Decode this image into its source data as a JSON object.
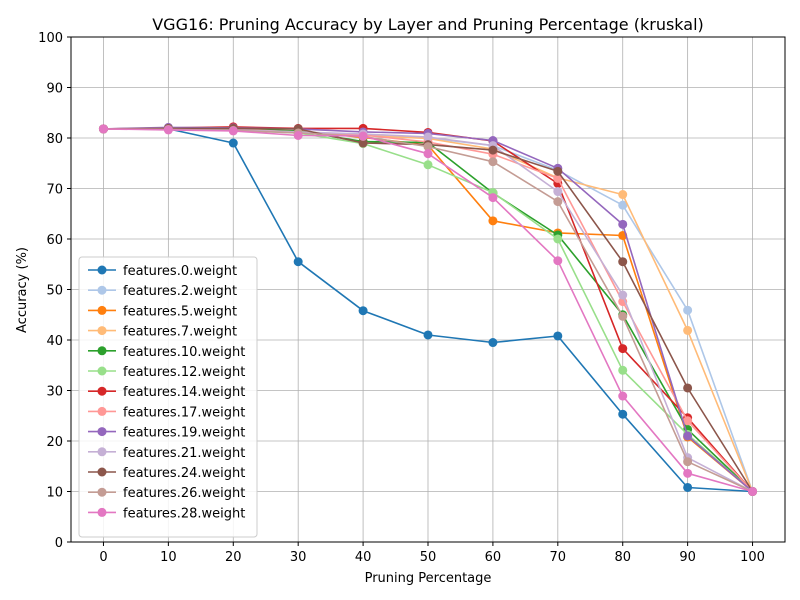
{
  "chart_data": {
    "type": "line",
    "title": "VGG16: Pruning Accuracy by Layer and Pruning Percentage (kruskal)",
    "xlabel": "Pruning Percentage",
    "ylabel": "Accuracy (%)",
    "x": [
      0,
      10,
      20,
      30,
      40,
      50,
      60,
      70,
      80,
      90,
      100
    ],
    "xlim": [
      -5,
      105
    ],
    "ylim": [
      0,
      100
    ],
    "xticks": [
      0,
      10,
      20,
      30,
      40,
      50,
      60,
      70,
      80,
      90,
      100
    ],
    "yticks": [
      0,
      10,
      20,
      30,
      40,
      50,
      60,
      70,
      80,
      90,
      100
    ],
    "grid": true,
    "legend_position": "lower-left",
    "series": [
      {
        "name": "features.0.weight",
        "color": "#1f77b4",
        "values": [
          81.8,
          81.8,
          79.0,
          55.5,
          45.8,
          41.0,
          39.5,
          40.8,
          25.3,
          10.8,
          10.0
        ]
      },
      {
        "name": "features.2.weight",
        "color": "#aec7e8",
        "values": [
          81.8,
          81.9,
          81.6,
          81.2,
          80.6,
          80.0,
          78.5,
          73.6,
          66.7,
          45.9,
          10.0
        ]
      },
      {
        "name": "features.5.weight",
        "color": "#ff7f0e",
        "values": [
          81.8,
          81.8,
          81.7,
          81.4,
          80.1,
          78.6,
          63.6,
          61.2,
          60.7,
          20.8,
          10.0
        ]
      },
      {
        "name": "features.7.weight",
        "color": "#ffbb78",
        "values": [
          81.8,
          81.8,
          81.7,
          81.2,
          80.5,
          79.9,
          77.8,
          72.1,
          68.8,
          41.9,
          10.0
        ]
      },
      {
        "name": "features.10.weight",
        "color": "#2ca02c",
        "values": [
          81.8,
          81.8,
          81.8,
          81.4,
          79.3,
          79.1,
          69.1,
          60.8,
          45.0,
          22.3,
          10.0
        ]
      },
      {
        "name": "features.12.weight",
        "color": "#98df8a",
        "values": [
          81.8,
          81.8,
          81.5,
          81.0,
          78.9,
          74.7,
          69.2,
          60.0,
          34.0,
          21.3,
          10.0
        ]
      },
      {
        "name": "features.14.weight",
        "color": "#d62728",
        "values": [
          81.8,
          82.0,
          82.2,
          81.9,
          81.9,
          81.1,
          79.4,
          71.0,
          38.3,
          24.6,
          10.0
        ]
      },
      {
        "name": "features.17.weight",
        "color": "#ff9896",
        "values": [
          81.8,
          81.8,
          81.7,
          81.2,
          80.6,
          79.2,
          76.8,
          72.0,
          47.6,
          24.0,
          10.0
        ]
      },
      {
        "name": "features.19.weight",
        "color": "#9467bd",
        "values": [
          81.8,
          82.1,
          82.0,
          81.8,
          81.2,
          80.9,
          79.5,
          74.0,
          62.9,
          21.0,
          10.0
        ]
      },
      {
        "name": "features.21.weight",
        "color": "#c5b0d5",
        "values": [
          81.8,
          81.9,
          81.6,
          81.2,
          80.8,
          80.2,
          78.5,
          69.4,
          48.9,
          16.7,
          10.0
        ]
      },
      {
        "name": "features.24.weight",
        "color": "#8c564b",
        "values": [
          81.8,
          81.9,
          81.9,
          81.8,
          79.0,
          78.7,
          77.6,
          73.4,
          55.5,
          30.5,
          10.0
        ]
      },
      {
        "name": "features.26.weight",
        "color": "#c49c94",
        "values": [
          81.8,
          81.7,
          81.5,
          81.0,
          80.3,
          78.3,
          75.3,
          67.4,
          44.7,
          15.9,
          10.0
        ]
      },
      {
        "name": "features.28.weight",
        "color": "#e377c2",
        "values": [
          81.8,
          81.6,
          81.4,
          80.5,
          80.4,
          76.9,
          68.2,
          55.7,
          28.9,
          13.6,
          10.0
        ]
      }
    ]
  }
}
